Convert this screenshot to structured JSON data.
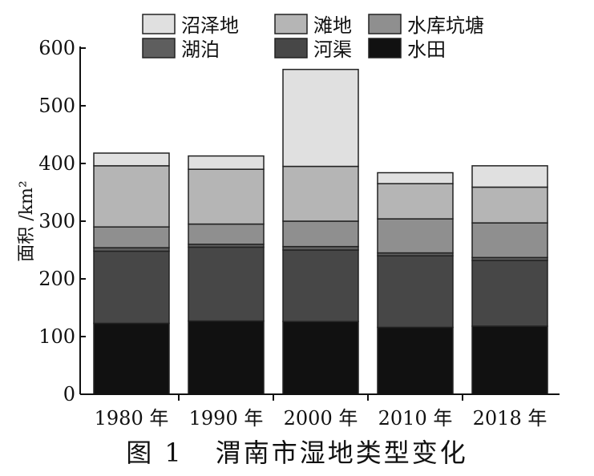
{
  "caption": {
    "figure_number": "图 1",
    "title": "渭南市湿地类型变化"
  },
  "chart_data": {
    "type": "bar",
    "stacked": true,
    "categories": [
      "1980 年",
      "1990 年",
      "2000 年",
      "2010 年",
      "2018 年"
    ],
    "ylabel": "面积 /km²",
    "ylim": [
      0,
      600
    ],
    "yticks": [
      0,
      100,
      200,
      300,
      400,
      500,
      600
    ],
    "grid": false,
    "legend_position": "top",
    "series": [
      {
        "name": "水田",
        "color": "#111111",
        "values": [
          123,
          127,
          126,
          116,
          118
        ]
      },
      {
        "name": "河渠",
        "color": "#474747",
        "values": [
          125,
          128,
          124,
          124,
          114
        ]
      },
      {
        "name": "湖泊",
        "color": "#5e5e5e",
        "values": [
          6,
          5,
          6,
          5,
          5
        ]
      },
      {
        "name": "水库坑塘",
        "color": "#8f8f8f",
        "values": [
          36,
          35,
          44,
          59,
          60
        ]
      },
      {
        "name": "滩地",
        "color": "#b5b5b5",
        "values": [
          106,
          95,
          95,
          61,
          62
        ]
      },
      {
        "name": "沼泽地",
        "color": "#e0e0e0",
        "values": [
          22,
          23,
          168,
          19,
          37
        ]
      }
    ]
  }
}
